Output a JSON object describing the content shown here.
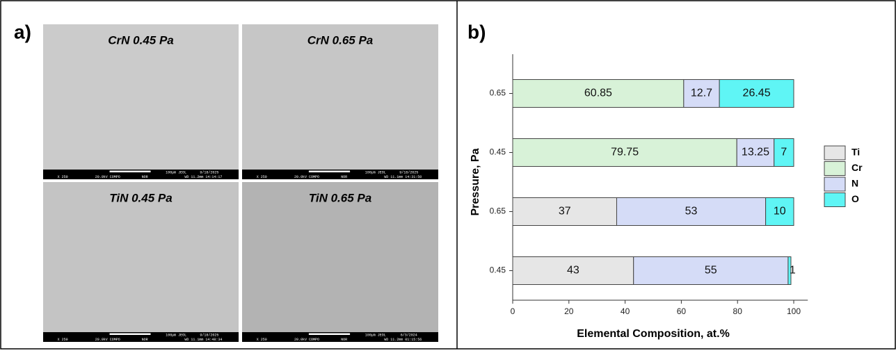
{
  "panel_a": {
    "label": "a)",
    "images": [
      {
        "title": "CrN 0.45 Pa",
        "footer": [
          "X 250",
          "20.0kV COMPO",
          "NOR",
          "100µm JEOL",
          "9/18/2025",
          "WD 11.2mm 14:14:17"
        ]
      },
      {
        "title": "CrN 0.65 Pa",
        "footer": [
          "X 250",
          "20.0kV COMPO",
          "NOR",
          "100µm JEOL",
          "9/18/2025",
          "WD 11.1mm 14:31:50"
        ]
      },
      {
        "title": "TiN 0.45 Pa",
        "footer": [
          "X 250",
          "20.0kV COMPO",
          "NOR",
          "100µm JEOL",
          "9/18/2025",
          "WD 11.1mm 14:48:34"
        ]
      },
      {
        "title": "TiN 0.65 Pa",
        "footer": [
          "X 250",
          "20.0kV COMPO",
          "NOR",
          "100µm JEOL",
          "6/3/2024",
          "WD 11.2mm 01:15:56"
        ]
      }
    ]
  },
  "panel_b": {
    "label": "b)"
  },
  "chart_data": {
    "type": "stacked-bar-horizontal",
    "categories": [
      "0.45",
      "0.65",
      "0.45",
      "0.65"
    ],
    "series": [
      {
        "name": "Ti",
        "color": "#e6e6e6",
        "values": [
          43,
          37,
          null,
          null
        ]
      },
      {
        "name": "Cr",
        "color": "#d8f2d8",
        "values": [
          null,
          null,
          79.75,
          60.85
        ]
      },
      {
        "name": "N",
        "color": "#d5dcf7",
        "values": [
          55,
          53,
          13.25,
          12.7
        ]
      },
      {
        "name": "O",
        "color": "#5ff5f5",
        "values": [
          1,
          10,
          7,
          26.45
        ]
      }
    ],
    "xlim": [
      0,
      105
    ],
    "xticks": [
      0,
      20,
      40,
      60,
      80,
      100
    ],
    "xlabel": "Elemental Composition, at.%",
    "ylabel": "Pressure, Pa"
  }
}
